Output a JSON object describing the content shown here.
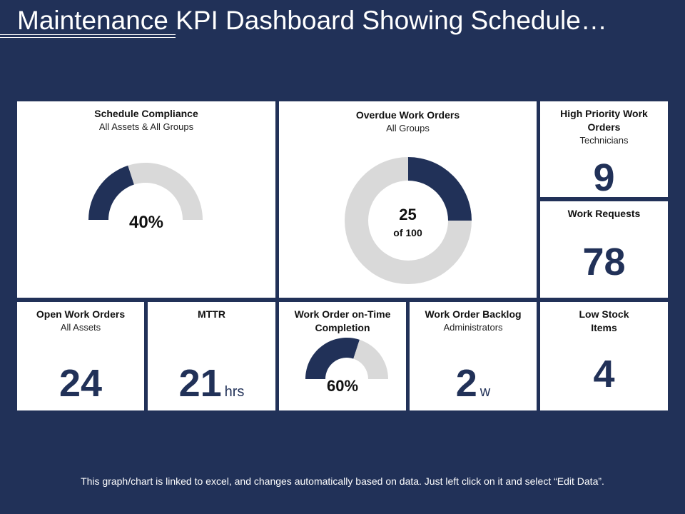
{
  "header": {
    "title": "Maintenance KPI Dashboard Showing Schedule…"
  },
  "cards": {
    "schedule_compliance": {
      "title": "Schedule Compliance",
      "subtitle": "All Assets & All Groups",
      "value_label": "40%"
    },
    "overdue": {
      "title": "Overdue Work Orders",
      "subtitle": "All Groups",
      "value": "25",
      "of_label": "of 100"
    },
    "high_priority": {
      "title": "High Priority Work Orders",
      "subtitle": "Technicians",
      "value": "9"
    },
    "work_requests": {
      "title": "Work Requests",
      "value": "78"
    },
    "open_work_orders": {
      "title": "Open Work Orders",
      "subtitle": "All Assets",
      "value": "24"
    },
    "mttr": {
      "title": "MTTR",
      "value": "21",
      "unit": "hrs"
    },
    "on_time": {
      "title": "Work Order on-Time Completion",
      "value_label": "60%"
    },
    "backlog": {
      "title": "Work Order Backlog",
      "subtitle": "Administrators",
      "value": "2",
      "unit": "w"
    },
    "low_stock": {
      "title": "Low Stock Items",
      "value": "4"
    }
  },
  "chart_data": [
    {
      "type": "gauge",
      "title": "Schedule Compliance",
      "value": 40,
      "max": 100,
      "unit": "%"
    },
    {
      "type": "pie",
      "title": "Overdue Work Orders",
      "value": 25,
      "total": 100
    },
    {
      "type": "gauge",
      "title": "Work Order on-Time Completion",
      "value": 60,
      "max": 100,
      "unit": "%"
    }
  ],
  "colors": {
    "background": "#213158",
    "accent": "#213158",
    "track": "#d9d9d9",
    "card": "#ffffff"
  },
  "footer": {
    "note": "This graph/chart is linked to excel, and changes automatically based on data. Just left click on it and select “Edit Data”."
  }
}
